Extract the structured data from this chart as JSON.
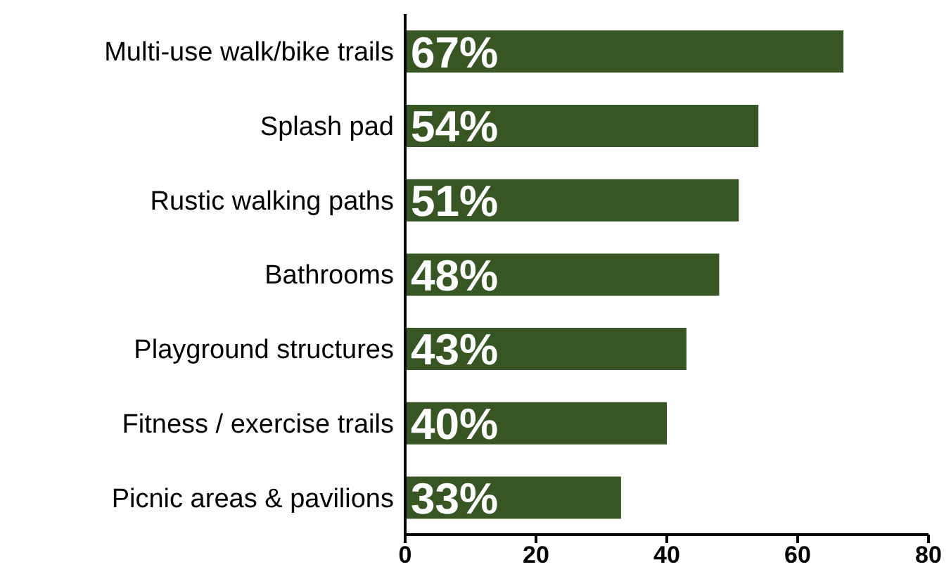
{
  "chart_data": {
    "type": "bar",
    "orientation": "horizontal",
    "categories": [
      "Multi-use walk/bike trails",
      "Splash pad",
      "Rustic walking paths",
      "Bathrooms",
      "Playground structures",
      "Fitness / exercise trails",
      "Picnic areas & pavilions"
    ],
    "values": [
      67,
      54,
      51,
      48,
      43,
      40,
      33
    ],
    "value_labels": [
      "67%",
      "54%",
      "51%",
      "48%",
      "43%",
      "40%",
      "33%"
    ],
    "color": "#375623",
    "xlim": [
      0,
      80
    ],
    "xticks": [
      0,
      20,
      40,
      60,
      80
    ],
    "grid": false,
    "legend": false
  }
}
